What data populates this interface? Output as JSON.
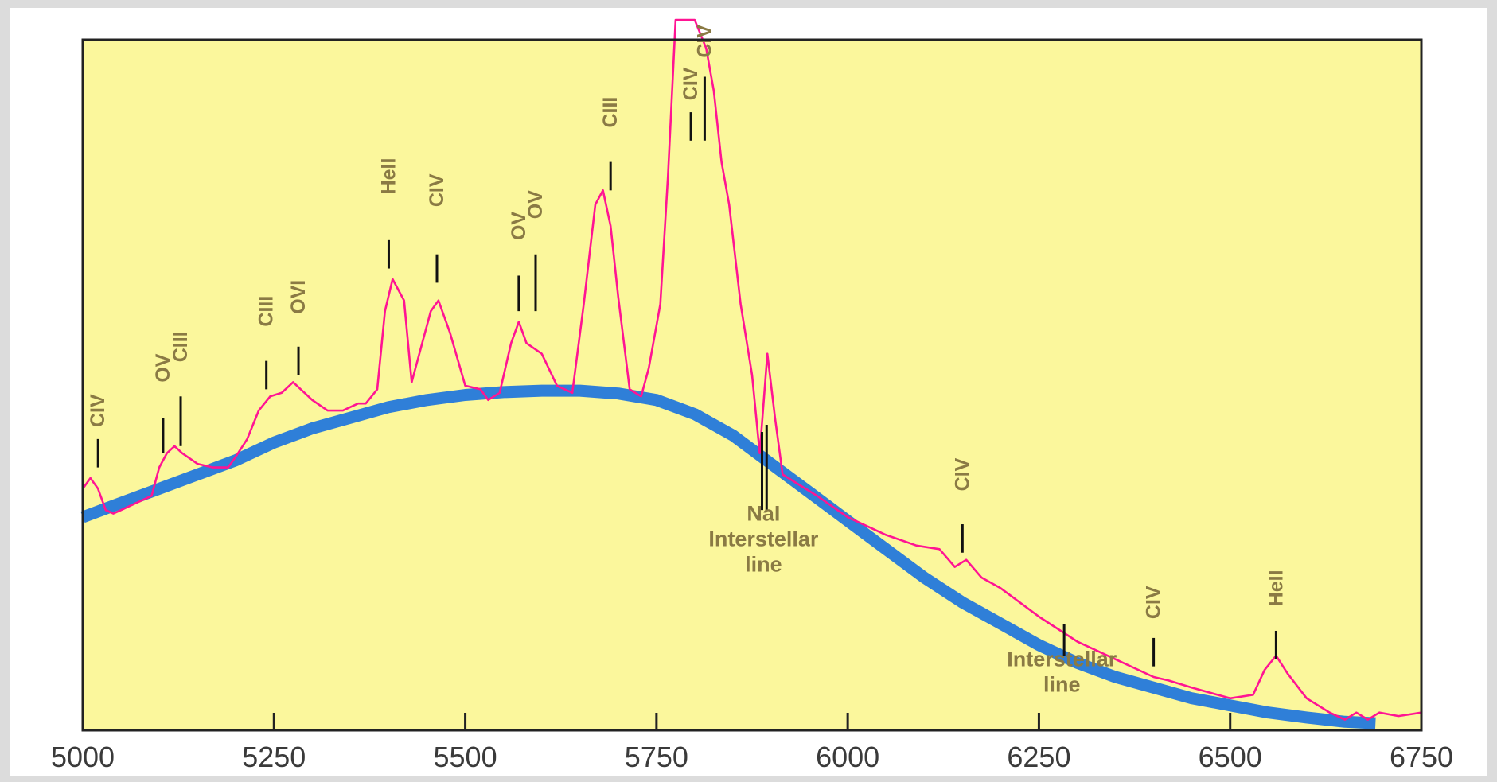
{
  "chart_data": {
    "type": "line",
    "title": "",
    "xlabel": "",
    "ylabel": "",
    "xlim": [
      5000,
      6750
    ],
    "ylim": [
      0,
      1
    ],
    "x_ticks": [
      "5000",
      "5250",
      "5500",
      "5750",
      "6000",
      "6250",
      "6500",
      "6750"
    ],
    "y_ticks": [],
    "grid": false,
    "colors": {
      "plot_bg": "#fbf79c",
      "spectrum": "#ff1493",
      "continuum": "#2f7fd8",
      "marker": "#111111",
      "label": "#8a7a44",
      "axis": "#222222"
    },
    "series": [
      {
        "name": "",
        "color": "#ff1493",
        "style": "thin",
        "x": [
          5000,
          5010,
          5020,
          5030,
          5040,
          5050,
          5070,
          5090,
          5100,
          5110,
          5120,
          5130,
          5150,
          5170,
          5190,
          5200,
          5215,
          5230,
          5245,
          5260,
          5275,
          5285,
          5300,
          5320,
          5340,
          5360,
          5370,
          5385,
          5395,
          5405,
          5420,
          5430,
          5445,
          5455,
          5465,
          5480,
          5500,
          5520,
          5530,
          5545,
          5560,
          5570,
          5580,
          5600,
          5620,
          5640,
          5655,
          5670,
          5680,
          5690,
          5700,
          5715,
          5730,
          5740,
          5755,
          5765,
          5775,
          5800,
          5815,
          5825,
          5835,
          5845,
          5860,
          5875,
          5885,
          5895,
          5905,
          5915,
          5930,
          5960,
          6000,
          6050,
          6090,
          6120,
          6140,
          6155,
          6175,
          6200,
          6250,
          6300,
          6350,
          6400,
          6420,
          6450,
          6500,
          6530,
          6545,
          6560,
          6575,
          6600,
          6630,
          6650,
          6665,
          6680,
          6695,
          6720,
          6750
        ],
        "y": [
          0.34,
          0.355,
          0.34,
          0.31,
          0.305,
          0.31,
          0.32,
          0.33,
          0.37,
          0.39,
          0.4,
          0.39,
          0.375,
          0.37,
          0.37,
          0.385,
          0.41,
          0.45,
          0.47,
          0.475,
          0.49,
          0.48,
          0.465,
          0.45,
          0.45,
          0.46,
          0.46,
          0.48,
          0.59,
          0.635,
          0.605,
          0.49,
          0.55,
          0.59,
          0.605,
          0.56,
          0.485,
          0.48,
          0.465,
          0.475,
          0.545,
          0.575,
          0.545,
          0.53,
          0.485,
          0.475,
          0.6,
          0.74,
          0.76,
          0.71,
          0.61,
          0.48,
          0.47,
          0.51,
          0.6,
          0.78,
          1.0,
          1.0,
          0.96,
          0.9,
          0.8,
          0.74,
          0.6,
          0.5,
          0.39,
          0.53,
          0.44,
          0.36,
          0.35,
          0.33,
          0.3,
          0.275,
          0.26,
          0.255,
          0.23,
          0.24,
          0.215,
          0.2,
          0.16,
          0.125,
          0.1,
          0.075,
          0.07,
          0.06,
          0.045,
          0.05,
          0.085,
          0.105,
          0.08,
          0.045,
          0.025,
          0.015,
          0.025,
          0.015,
          0.025,
          0.02,
          0.025
        ]
      },
      {
        "name": "",
        "color": "#2f7fd8",
        "style": "thick",
        "x": [
          5000,
          5050,
          5100,
          5150,
          5200,
          5250,
          5300,
          5350,
          5400,
          5450,
          5500,
          5550,
          5600,
          5650,
          5700,
          5750,
          5800,
          5850,
          5900,
          5950,
          6000,
          6050,
          6100,
          6150,
          6200,
          6250,
          6300,
          6350,
          6400,
          6450,
          6500,
          6550,
          6600,
          6650,
          6690
        ],
        "y": [
          0.3,
          0.32,
          0.34,
          0.36,
          0.38,
          0.405,
          0.425,
          0.44,
          0.455,
          0.465,
          0.472,
          0.476,
          0.478,
          0.478,
          0.474,
          0.465,
          0.445,
          0.415,
          0.375,
          0.335,
          0.295,
          0.255,
          0.215,
          0.18,
          0.15,
          0.12,
          0.095,
          0.075,
          0.06,
          0.045,
          0.035,
          0.025,
          0.018,
          0.012,
          0.01
        ]
      }
    ],
    "annotations": [
      {
        "x": 5020,
        "label": "CIV",
        "label_y": 0.45,
        "tick_from": 0.37,
        "tick_to": 0.41
      },
      {
        "x": 5105,
        "label": "OV",
        "label_y": 0.51,
        "tick_from": 0.39,
        "tick_to": 0.44
      },
      {
        "x": 5128,
        "label": "CIII",
        "label_y": 0.54,
        "tick_from": 0.4,
        "tick_to": 0.47
      },
      {
        "x": 5240,
        "label": "CIII",
        "label_y": 0.59,
        "tick_from": 0.48,
        "tick_to": 0.52
      },
      {
        "x": 5282,
        "label": "OVI",
        "label_y": 0.61,
        "tick_from": 0.5,
        "tick_to": 0.54
      },
      {
        "x": 5400,
        "label": "HeII",
        "label_y": 0.78,
        "tick_from": 0.65,
        "tick_to": 0.69
      },
      {
        "x": 5463,
        "label": "CIV",
        "label_y": 0.76,
        "tick_from": 0.63,
        "tick_to": 0.67
      },
      {
        "x": 5570,
        "label": "OV",
        "label_y": 0.71,
        "tick_from": 0.59,
        "tick_to": 0.64
      },
      {
        "x": 5592,
        "label": "OV",
        "label_y": 0.74,
        "tick_from": 0.59,
        "tick_to": 0.67
      },
      {
        "x": 5690,
        "label": "CIII",
        "label_y": 0.87,
        "tick_from": 0.76,
        "tick_to": 0.8
      },
      {
        "x": 5795,
        "label": "CIV",
        "label_y": 0.91,
        "tick_from": 0.83,
        "tick_to": 0.87
      },
      {
        "x": 5813,
        "label": "CIV",
        "label_y": 0.97,
        "tick_from": 0.83,
        "tick_to": 0.92
      },
      {
        "x": 6150,
        "label": "CIV",
        "label_y": 0.36,
        "tick_from": 0.25,
        "tick_to": 0.29
      },
      {
        "x": 6400,
        "label": "CIV",
        "label_y": 0.18,
        "tick_from": 0.09,
        "tick_to": 0.13
      },
      {
        "x": 6560,
        "label": "HeII",
        "label_y": 0.2,
        "tick_from": 0.1,
        "tick_to": 0.14
      }
    ],
    "interstellar_markers": [
      {
        "x": 5888,
        "tick_from": 0.31,
        "tick_to": 0.42
      },
      {
        "x": 5894,
        "tick_from": 0.31,
        "tick_to": 0.43
      },
      {
        "x": 6283,
        "tick_from": 0.105,
        "tick_to": 0.15
      }
    ],
    "notes": [
      {
        "x": 5890,
        "y": 0.295,
        "lines": [
          "NaI",
          "Interstellar",
          "line"
        ]
      },
      {
        "x": 6280,
        "y": 0.09,
        "lines": [
          "Interstellar",
          "line"
        ]
      }
    ]
  }
}
